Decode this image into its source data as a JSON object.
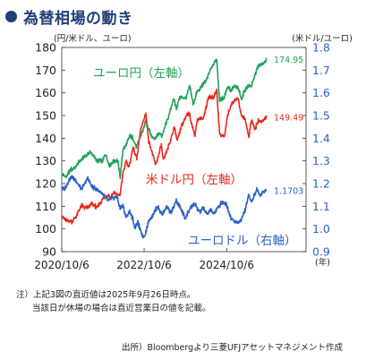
{
  "header": {
    "title": "為替相場の動き"
  },
  "chart_data": {
    "type": "line",
    "left_axis_label": "(円/米ドル、ユーロ)",
    "right_axis_label": "(米ドル/ユーロ)",
    "x_unit_label": "(年)",
    "x_ticks": [
      "2020/10/6",
      "2022/10/6",
      "2024/10/6"
    ],
    "y_left": {
      "ticks": [
        "180",
        "170",
        "160",
        "150",
        "140",
        "130",
        "120",
        "110",
        "100",
        "90"
      ],
      "min": 90,
      "max": 180
    },
    "y_right": {
      "ticks": [
        "1.8",
        "1.7",
        "1.6",
        "1.5",
        "1.4",
        "1.3",
        "1.2",
        "1.1",
        "1.0",
        "0.9"
      ],
      "min": 0.9,
      "max": 1.8,
      "color": "#2a62c9"
    },
    "x_range": [
      "2020-10-06",
      "2025-09-26"
    ],
    "series": [
      {
        "name": "ユーロ円（左軸）",
        "axis": "left",
        "color": "#22a05a",
        "last_label": "174.95",
        "points": [
          [
            "2020-10-06",
            124
          ],
          [
            "2020-11-15",
            123
          ],
          [
            "2020-12-20",
            126
          ],
          [
            "2021-02-01",
            127
          ],
          [
            "2021-03-15",
            130
          ],
          [
            "2021-05-01",
            132
          ],
          [
            "2021-06-15",
            134
          ],
          [
            "2021-08-15",
            130
          ],
          [
            "2021-10-01",
            130
          ],
          [
            "2021-11-01",
            133
          ],
          [
            "2021-12-01",
            128
          ],
          [
            "2022-01-15",
            130
          ],
          [
            "2022-02-15",
            130
          ],
          [
            "2022-03-08",
            123
          ],
          [
            "2022-04-01",
            135
          ],
          [
            "2022-05-01",
            137
          ],
          [
            "2022-06-01",
            141
          ],
          [
            "2022-07-01",
            140
          ],
          [
            "2022-08-01",
            136
          ],
          [
            "2022-09-01",
            141
          ],
          [
            "2022-10-01",
            144
          ],
          [
            "2022-10-21",
            148
          ],
          [
            "2022-11-15",
            144
          ],
          [
            "2022-12-20",
            140
          ],
          [
            "2023-01-10",
            140
          ],
          [
            "2023-02-15",
            142
          ],
          [
            "2023-03-15",
            141
          ],
          [
            "2023-04-15",
            146
          ],
          [
            "2023-05-15",
            150
          ],
          [
            "2023-06-15",
            156
          ],
          [
            "2023-07-01",
            157
          ],
          [
            "2023-07-20",
            153
          ],
          [
            "2023-08-15",
            158
          ],
          [
            "2023-09-15",
            158
          ],
          [
            "2023-10-15",
            158
          ],
          [
            "2023-11-15",
            163
          ],
          [
            "2023-12-15",
            155
          ],
          [
            "2024-01-15",
            160
          ],
          [
            "2024-02-15",
            162
          ],
          [
            "2024-03-15",
            164
          ],
          [
            "2024-04-15",
            166
          ],
          [
            "2024-05-15",
            170
          ],
          [
            "2024-07-10",
            175
          ],
          [
            "2024-08-05",
            157
          ],
          [
            "2024-09-15",
            158
          ],
          [
            "2024-10-15",
            163
          ],
          [
            "2024-11-15",
            161
          ],
          [
            "2024-12-15",
            163
          ],
          [
            "2025-01-15",
            162
          ],
          [
            "2025-02-15",
            157
          ],
          [
            "2025-03-15",
            161
          ],
          [
            "2025-04-15",
            163
          ],
          [
            "2025-05-15",
            163
          ],
          [
            "2025-06-15",
            168
          ],
          [
            "2025-07-15",
            172
          ],
          [
            "2025-08-15",
            172
          ],
          [
            "2025-09-26",
            174.95
          ]
        ]
      },
      {
        "name": "米ドル円（左軸）",
        "axis": "left",
        "color": "#e8281e",
        "last_label": "149.49",
        "points": [
          [
            "2020-10-06",
            105.5
          ],
          [
            "2020-11-10",
            104
          ],
          [
            "2020-12-20",
            103.5
          ],
          [
            "2021-01-06",
            103
          ],
          [
            "2021-02-15",
            106
          ],
          [
            "2021-03-31",
            110.5
          ],
          [
            "2021-05-01",
            109
          ],
          [
            "2021-06-30",
            111
          ],
          [
            "2021-08-15",
            109.5
          ],
          [
            "2021-10-20",
            114
          ],
          [
            "2021-11-25",
            115
          ],
          [
            "2021-12-15",
            113.5
          ],
          [
            "2022-01-05",
            116
          ],
          [
            "2022-02-15",
            115
          ],
          [
            "2022-03-07",
            115
          ],
          [
            "2022-03-28",
            123
          ],
          [
            "2022-04-28",
            130
          ],
          [
            "2022-05-25",
            127
          ],
          [
            "2022-06-30",
            136
          ],
          [
            "2022-08-02",
            131
          ],
          [
            "2022-09-07",
            144
          ],
          [
            "2022-10-21",
            151
          ],
          [
            "2022-11-15",
            139
          ],
          [
            "2022-12-20",
            133
          ],
          [
            "2023-01-16",
            128
          ],
          [
            "2023-03-08",
            137
          ],
          [
            "2023-03-24",
            130
          ],
          [
            "2023-05-15",
            137
          ],
          [
            "2023-06-30",
            145
          ],
          [
            "2023-07-28",
            139
          ],
          [
            "2023-08-31",
            145
          ],
          [
            "2023-10-31",
            151
          ],
          [
            "2023-11-15",
            150
          ],
          [
            "2023-12-28",
            141
          ],
          [
            "2024-01-20",
            148
          ],
          [
            "2024-03-15",
            149
          ],
          [
            "2024-04-29",
            158
          ],
          [
            "2024-06-15",
            158
          ],
          [
            "2024-07-10",
            161.5
          ],
          [
            "2024-08-05",
            142
          ],
          [
            "2024-09-16",
            140.5
          ],
          [
            "2024-10-15",
            150
          ],
          [
            "2024-11-15",
            155
          ],
          [
            "2024-12-31",
            157
          ],
          [
            "2025-01-15",
            158
          ],
          [
            "2025-02-15",
            150
          ],
          [
            "2025-03-15",
            149
          ],
          [
            "2025-04-21",
            140.5
          ],
          [
            "2025-05-12",
            148
          ],
          [
            "2025-06-15",
            144
          ],
          [
            "2025-07-15",
            148
          ],
          [
            "2025-08-15",
            147
          ],
          [
            "2025-09-26",
            149.49
          ]
        ]
      },
      {
        "name": "ユーロドル（右軸）",
        "axis": "right",
        "color": "#2a62c9",
        "last_label": "1.1703",
        "points": [
          [
            "2020-10-06",
            1.177
          ],
          [
            "2020-11-05",
            1.18
          ],
          [
            "2020-12-20",
            1.225
          ],
          [
            "2021-01-06",
            1.232
          ],
          [
            "2021-02-15",
            1.21
          ],
          [
            "2021-03-31",
            1.173
          ],
          [
            "2021-05-25",
            1.225
          ],
          [
            "2021-06-30",
            1.185
          ],
          [
            "2021-08-15",
            1.175
          ],
          [
            "2021-09-30",
            1.157
          ],
          [
            "2021-11-24",
            1.122
          ],
          [
            "2021-12-31",
            1.137
          ],
          [
            "2022-02-10",
            1.143
          ],
          [
            "2022-03-07",
            1.087
          ],
          [
            "2022-03-31",
            1.107
          ],
          [
            "2022-04-28",
            1.05
          ],
          [
            "2022-05-30",
            1.076
          ],
          [
            "2022-06-30",
            1.044
          ],
          [
            "2022-07-14",
            1.002
          ],
          [
            "2022-08-10",
            1.03
          ],
          [
            "2022-09-27",
            0.962
          ],
          [
            "2022-10-21",
            0.985
          ],
          [
            "2022-11-15",
            1.035
          ],
          [
            "2022-12-31",
            1.07
          ],
          [
            "2023-02-01",
            1.1
          ],
          [
            "2023-03-15",
            1.06
          ],
          [
            "2023-04-25",
            1.102
          ],
          [
            "2023-05-31",
            1.068
          ],
          [
            "2023-07-18",
            1.125
          ],
          [
            "2023-08-31",
            1.085
          ],
          [
            "2023-10-03",
            1.048
          ],
          [
            "2023-11-29",
            1.098
          ],
          [
            "2023-12-28",
            1.11
          ],
          [
            "2024-02-15",
            1.072
          ],
          [
            "2024-03-08",
            1.094
          ],
          [
            "2024-04-15",
            1.063
          ],
          [
            "2024-05-15",
            1.085
          ],
          [
            "2024-06-15",
            1.07
          ],
          [
            "2024-07-15",
            1.09
          ],
          [
            "2024-08-26",
            1.118
          ],
          [
            "2024-09-30",
            1.113
          ],
          [
            "2024-11-22",
            1.04
          ],
          [
            "2025-01-13",
            1.025
          ],
          [
            "2025-02-15",
            1.045
          ],
          [
            "2025-03-20",
            1.085
          ],
          [
            "2025-04-21",
            1.15
          ],
          [
            "2025-05-15",
            1.12
          ],
          [
            "2025-06-15",
            1.155
          ],
          [
            "2025-07-01",
            1.178
          ],
          [
            "2025-08-01",
            1.143
          ],
          [
            "2025-08-20",
            1.165
          ],
          [
            "2025-09-26",
            1.1703
          ]
        ]
      }
    ],
    "in_chart_labels": [
      {
        "text": "ユーロ円（左軸）",
        "color": "#22a05a"
      },
      {
        "text": "米ドル円（左軸）",
        "color": "#e8281e"
      },
      {
        "text": "ユーロドル（右軸）",
        "color": "#2a62c9"
      }
    ]
  },
  "notes": [
    "注）上記3図の直近値は2025年9月26日時点。",
    "当該日が休場の場合は直近営業日の値を記載。"
  ],
  "source": "出所）Bloombergより三菱UFJアセットマネジメント作成"
}
